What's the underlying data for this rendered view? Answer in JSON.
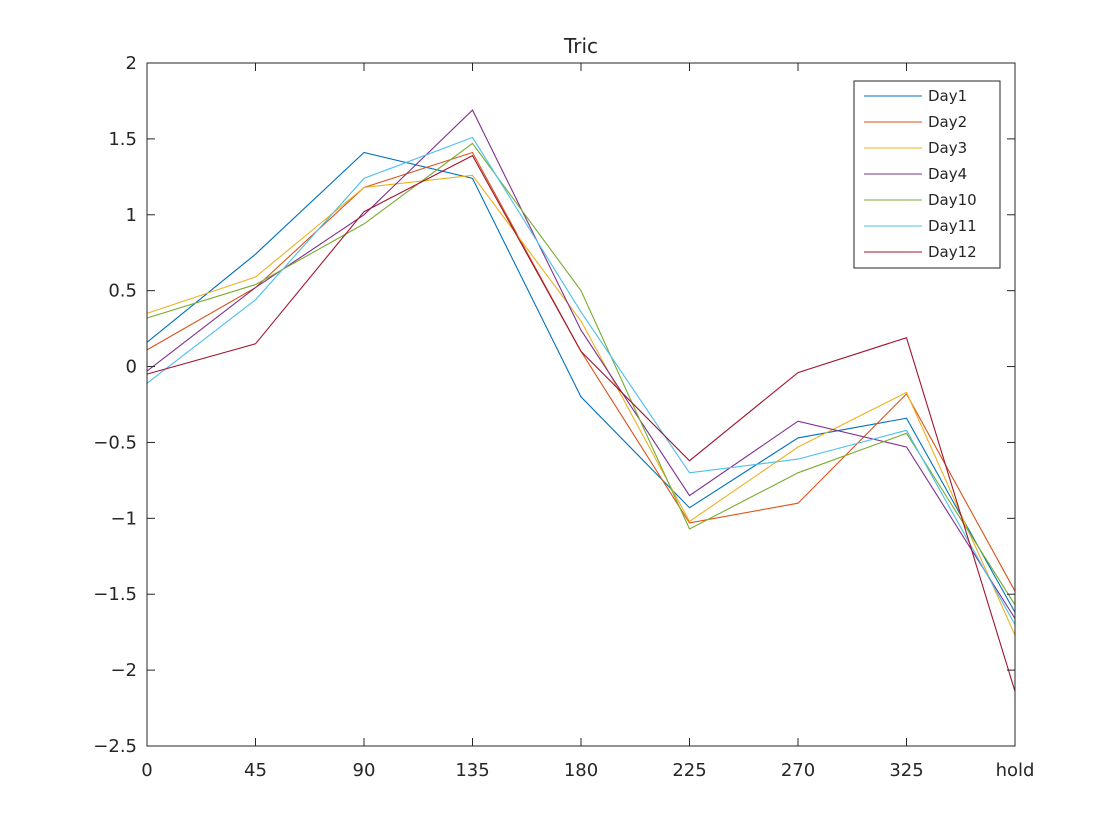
{
  "chart_data": {
    "type": "line",
    "title": "Tric",
    "xlabel": "",
    "ylabel": "",
    "categories": [
      "0",
      "45",
      "90",
      "135",
      "180",
      "225",
      "270",
      "325",
      "hold"
    ],
    "ylim": [
      -2.5,
      2
    ],
    "yticks": [
      -2.5,
      -2,
      -1.5,
      -1,
      -0.5,
      0,
      0.5,
      1,
      1.5,
      2
    ],
    "ytick_labels": [
      "−2.5",
      "−2",
      "−1.5",
      "−1",
      "−0.5",
      "0",
      "0.5",
      "1",
      "1.5",
      "2"
    ],
    "grid": false,
    "legend_position": "top-right",
    "series": [
      {
        "name": "Day1",
        "color": "#0072BD",
        "values": [
          0.16,
          0.74,
          1.41,
          1.24,
          -0.2,
          -0.93,
          -0.47,
          -0.34,
          -1.62
        ]
      },
      {
        "name": "Day2",
        "color": "#D95319",
        "values": [
          0.11,
          0.52,
          1.18,
          1.41,
          0.1,
          -1.03,
          -0.9,
          -0.18,
          -1.48
        ]
      },
      {
        "name": "Day3",
        "color": "#EDB120",
        "values": [
          0.35,
          0.59,
          1.18,
          1.26,
          0.3,
          -1.02,
          -0.53,
          -0.17,
          -1.77
        ]
      },
      {
        "name": "Day4",
        "color": "#7E2F8E",
        "values": [
          -0.03,
          0.52,
          1.0,
          1.69,
          0.24,
          -0.85,
          -0.36,
          -0.53,
          -1.66
        ]
      },
      {
        "name": "Day10",
        "color": "#77AC30",
        "values": [
          0.32,
          0.54,
          0.94,
          1.47,
          0.5,
          -1.07,
          -0.7,
          -0.44,
          -1.57
        ]
      },
      {
        "name": "Day11",
        "color": "#4DBEEE",
        "values": [
          -0.11,
          0.44,
          1.24,
          1.51,
          0.36,
          -0.7,
          -0.61,
          -0.42,
          -1.7
        ]
      },
      {
        "name": "Day12",
        "color": "#A2142F",
        "values": [
          -0.05,
          0.15,
          1.02,
          1.39,
          0.1,
          -0.62,
          -0.04,
          0.19,
          -2.14
        ]
      }
    ]
  }
}
